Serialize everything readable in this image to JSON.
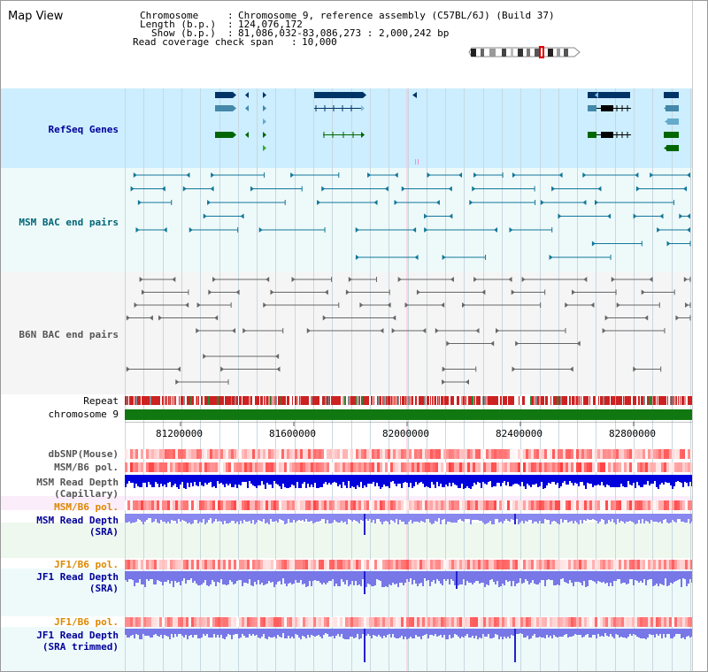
{
  "title": "Map View",
  "info": {
    "labels": [
      "Chromosome",
      "Length (b.p.)",
      "Show (b.p.)",
      "Read coverage check span"
    ],
    "values": [
      "Chromosome 9, reference assembly (C57BL/6J) (Build 37)",
      "124,076,172",
      "81,086,032-83,086,273 : 2,000,242 bp",
      "10,000"
    ]
  },
  "tracks": {
    "refseq": "RefSeq Genes",
    "msm_bac": "MSM BAC end pairs",
    "b6n_bac": "B6N BAC end pairs",
    "repeat": "Repeat",
    "chromosome": "chromosome 9",
    "dbsnp": "dbSNP(Mouse)",
    "msm_b6_pol_1": "MSM/B6 pol.",
    "msm_depth_cap_1": "MSM Read Depth",
    "msm_depth_cap_2": "(Capillary)",
    "msm_b6_pol_2": "MSM/B6 pol.",
    "msm_depth_sra_1": "MSM Read Depth",
    "msm_depth_sra_2": "(SRA)",
    "jf1_pol_1": "JF1/B6 pol.",
    "jf1_depth_sra_1": "JF1 Read Depth",
    "jf1_depth_sra_2": "(SRA)",
    "jf1_pol_2": "JF1/B6 pol.",
    "jf1_depth_trim_1": "JF1 Read Depth",
    "jf1_depth_trim_2": "(SRA trimmed)"
  },
  "ruler": {
    "ticks": [
      "81200000",
      "81600000",
      "82000000",
      "82400000",
      "82800000"
    ]
  },
  "colors": {
    "refseq_bg": "#cceeff",
    "msm_bac_bg": "#eefafa",
    "b6n_bac_bg": "#f5f5f5",
    "chromosome_bar": "#117711",
    "msm_bac_line": "#006688",
    "b6n_bac_line": "#666666",
    "label_blue": "#000099",
    "label_teal": "#006677",
    "label_orange": "#dd8800",
    "depth_blue": "#0000dd",
    "depth_light": "#8888ee"
  }
}
